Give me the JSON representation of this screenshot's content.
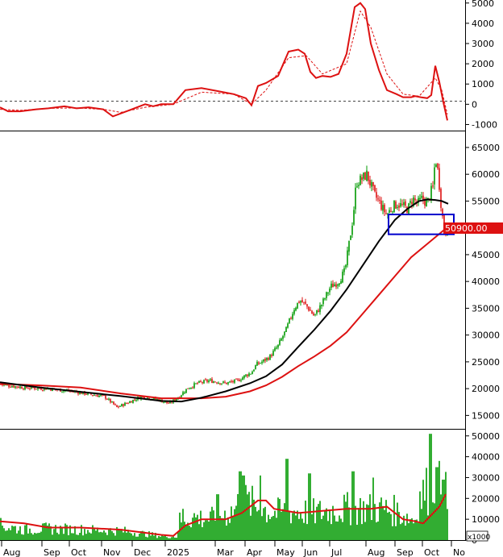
{
  "chart_data": [
    {
      "type": "line",
      "panel": "oscillator",
      "y_ticks": [
        5000,
        4000,
        3000,
        2000,
        1000,
        0,
        -1000
      ],
      "ylim": [
        -1300,
        5150
      ],
      "zero_reference_line": "dashed",
      "colors": {
        "main": "#dd1111",
        "signal": "#dd1111"
      },
      "series": [
        {
          "style": "solid",
          "x": [
            0,
            10,
            25,
            45,
            60,
            80,
            95,
            110,
            128,
            140,
            160,
            180,
            190,
            200,
            215,
            230,
            250,
            270,
            290,
            305,
            312,
            320,
            330,
            345,
            358,
            370,
            378,
            385,
            392,
            400,
            410,
            420,
            430,
            440,
            447,
            453,
            460,
            470,
            480,
            492,
            500,
            510,
            515,
            522,
            530,
            535,
            540,
            545,
            550,
            555
          ],
          "values": [
            -150,
            -350,
            -350,
            -250,
            -200,
            -100,
            -200,
            -150,
            -250,
            -600,
            -300,
            0,
            -100,
            0,
            0,
            700,
            800,
            650,
            500,
            300,
            -50,
            900,
            1050,
            1400,
            2600,
            2700,
            2500,
            1600,
            1300,
            1400,
            1350,
            1500,
            2500,
            4800,
            5000,
            4700,
            3000,
            1700,
            700,
            500,
            350,
            350,
            400,
            350,
            300,
            450,
            1900,
            1100,
            100,
            -800
          ]
        },
        {
          "style": "dashed",
          "x": [
            0,
            25,
            60,
            95,
            128,
            150,
            180,
            215,
            250,
            290,
            312,
            330,
            358,
            380,
            400,
            430,
            447,
            460,
            480,
            500,
            520,
            540,
            548,
            555
          ],
          "values": [
            -250,
            -300,
            -200,
            -180,
            -250,
            -400,
            -150,
            0,
            600,
            500,
            0,
            700,
            2300,
            2400,
            1500,
            2000,
            4600,
            3800,
            1500,
            500,
            400,
            1300,
            700,
            -500
          ]
        }
      ]
    },
    {
      "type": "candlestick",
      "panel": "price",
      "y_ticks": [
        65000,
        60000,
        55000,
        50000,
        45000,
        40000,
        35000,
        30000,
        25000,
        20000,
        15000
      ],
      "ylim": [
        12500,
        68000
      ],
      "last_price_label": "50900.00",
      "highlight_box": {
        "x_range": [
          482,
          563
        ],
        "y_range": [
          48800,
          52500
        ],
        "color": "#0000cc"
      },
      "colors": {
        "up": "#009900",
        "down": "#dd1111",
        "ma_short": "#000000",
        "ma_long": "#dd1111",
        "label_bg": "#dd1111"
      },
      "price_path_x": [
        0,
        30,
        60,
        90,
        110,
        130,
        145,
        160,
        175,
        195,
        210,
        222,
        232,
        245,
        260,
        280,
        295,
        305,
        312,
        318,
        325,
        335,
        345,
        355,
        365,
        372,
        380,
        390,
        400,
        410,
        420,
        428,
        433,
        438,
        442,
        448,
        455,
        460,
        465,
        470,
        475,
        480,
        487,
        493,
        500,
        506,
        512,
        518,
        524,
        530,
        534,
        537,
        540,
        542,
        545,
        548,
        551,
        554,
        556
      ],
      "price_path": [
        20800,
        20200,
        20000,
        19500,
        19000,
        18500,
        16500,
        17500,
        18500,
        18000,
        17200,
        18500,
        20000,
        21000,
        21500,
        21000,
        21500,
        22500,
        23000,
        24500,
        25000,
        26000,
        28000,
        31000,
        35000,
        36500,
        35500,
        33500,
        36000,
        39000,
        40000,
        42000,
        47000,
        52000,
        58500,
        59000,
        60000,
        58000,
        56000,
        55000,
        53500,
        52500,
        54000,
        54500,
        54000,
        53500,
        55500,
        54500,
        55500,
        54500,
        56500,
        57500,
        63000,
        62000,
        58000,
        53000,
        50000,
        49000,
        50900
      ],
      "ma_short": {
        "x": [
          0,
          50,
          100,
          150,
          200,
          225,
          250,
          280,
          310,
          330,
          350,
          370,
          390,
          410,
          430,
          450,
          470,
          490,
          505,
          520,
          530,
          540,
          548,
          556
        ],
        "values": [
          21200,
          20200,
          19400,
          18600,
          17700,
          17600,
          18300,
          19500,
          21000,
          22300,
          24500,
          27800,
          31000,
          34500,
          38500,
          43000,
          47500,
          51500,
          53500,
          55000,
          55300,
          55200,
          55000,
          54500
        ]
      },
      "ma_long": {
        "x": [
          0,
          50,
          100,
          150,
          200,
          250,
          280,
          310,
          330,
          350,
          370,
          390,
          410,
          430,
          450,
          470,
          490,
          510,
          530,
          550,
          556
        ],
        "values": [
          20900,
          20600,
          20200,
          19100,
          18200,
          18200,
          18500,
          19500,
          20600,
          22200,
          24200,
          26000,
          28000,
          30500,
          34000,
          37500,
          41000,
          44500,
          47000,
          49500,
          50500
        ]
      }
    },
    {
      "type": "bar",
      "panel": "volume",
      "y_ticks": [
        50000,
        40000,
        30000,
        20000,
        10000,
        0
      ],
      "ylim": [
        0,
        53000
      ],
      "unit_label": "x1000",
      "colors": {
        "bars": "#009900",
        "ma": "#dd1111"
      },
      "volume_anchor_x": [
        0,
        30,
        60,
        100,
        150,
        200,
        220,
        222,
        240,
        260,
        290,
        300,
        320,
        340,
        360,
        390,
        410,
        430,
        450,
        470,
        490,
        505,
        515,
        520,
        530,
        535,
        540,
        545,
        548,
        552,
        556
      ],
      "volume_anchor": [
        7000,
        5000,
        5500,
        5000,
        4500,
        2000,
        1500,
        9000,
        11000,
        10000,
        14000,
        19000,
        16000,
        13000,
        14000,
        13000,
        14000,
        15000,
        15000,
        15000,
        14000,
        11000,
        10000,
        20000,
        24000,
        18000,
        35000,
        25000,
        28000,
        25000,
        12000
      ],
      "volume_spikes": [
        {
          "x": 298,
          "v": 33000
        },
        {
          "x": 302,
          "v": 31000
        },
        {
          "x": 323,
          "v": 31000
        },
        {
          "x": 356,
          "v": 39000
        },
        {
          "x": 384,
          "v": 32000
        },
        {
          "x": 438,
          "v": 33000
        },
        {
          "x": 463,
          "v": 30000
        },
        {
          "x": 534,
          "v": 51000
        },
        {
          "x": 542,
          "v": 35000
        },
        {
          "x": 550,
          "v": 29000
        },
        {
          "x": 227,
          "v": 15000
        },
        {
          "x": 270,
          "v": 22000
        }
      ],
      "ma": {
        "x": [
          0,
          30,
          60,
          100,
          150,
          200,
          215,
          230,
          250,
          280,
          300,
          320,
          330,
          340,
          370,
          400,
          430,
          460,
          480,
          500,
          515,
          525,
          535,
          545,
          553
        ],
        "values": [
          9000,
          8000,
          6000,
          6000,
          5000,
          2500,
          2000,
          7000,
          10000,
          10000,
          13000,
          19000,
          19000,
          15000,
          13000,
          14000,
          15000,
          15000,
          16000,
          10000,
          9000,
          8000,
          12000,
          16000,
          22000
        ]
      }
    }
  ],
  "x_axis": {
    "labels": [
      "Aug",
      "Sep",
      "Oct",
      "Nov",
      "Dec",
      "2025",
      "Mar",
      "Apr",
      "May",
      "Jun",
      "Jul",
      "Aug",
      "Sep",
      "Oct",
      "No"
    ],
    "positions": [
      7,
      57,
      91,
      131,
      169,
      210,
      272,
      309,
      346,
      380,
      414,
      459,
      495,
      529,
      565
    ]
  }
}
